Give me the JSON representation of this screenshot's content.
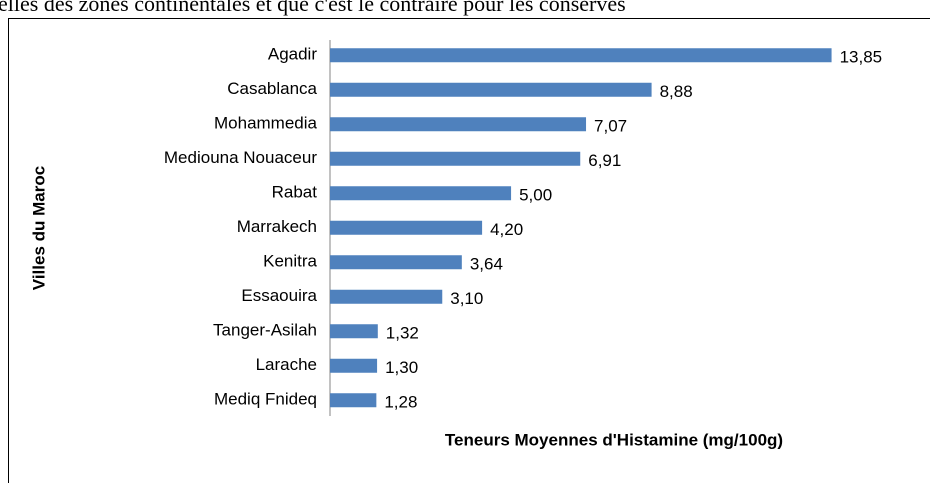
{
  "document_text": "elles des zones continentales et que c'est le contraire pour les conserves",
  "chart_data": {
    "type": "barh",
    "x_label": "Teneurs Moyennes d'Histamine (mg/100g)",
    "y_label": "Villes  du Maroc",
    "categories": [
      "Agadir",
      "Casablanca",
      "Mohammedia",
      "Mediouna Nouaceur",
      "Rabat",
      "Marrakech",
      "Kenitra",
      "Essaouira",
      "Tanger-Asilah",
      "Larache",
      "Mediq Fnideq"
    ],
    "values": [
      13.85,
      8.88,
      7.07,
      6.91,
      5.0,
      4.2,
      3.64,
      3.1,
      1.32,
      1.3,
      1.28
    ],
    "value_labels": [
      "13,85",
      "8,88",
      "7,07",
      "6,91",
      "5,00",
      "4,20",
      "3,64",
      "3,10",
      "1,32",
      "1,30",
      "1,28"
    ],
    "color": "#4f81bd",
    "xlim": [
      0,
      14
    ]
  }
}
